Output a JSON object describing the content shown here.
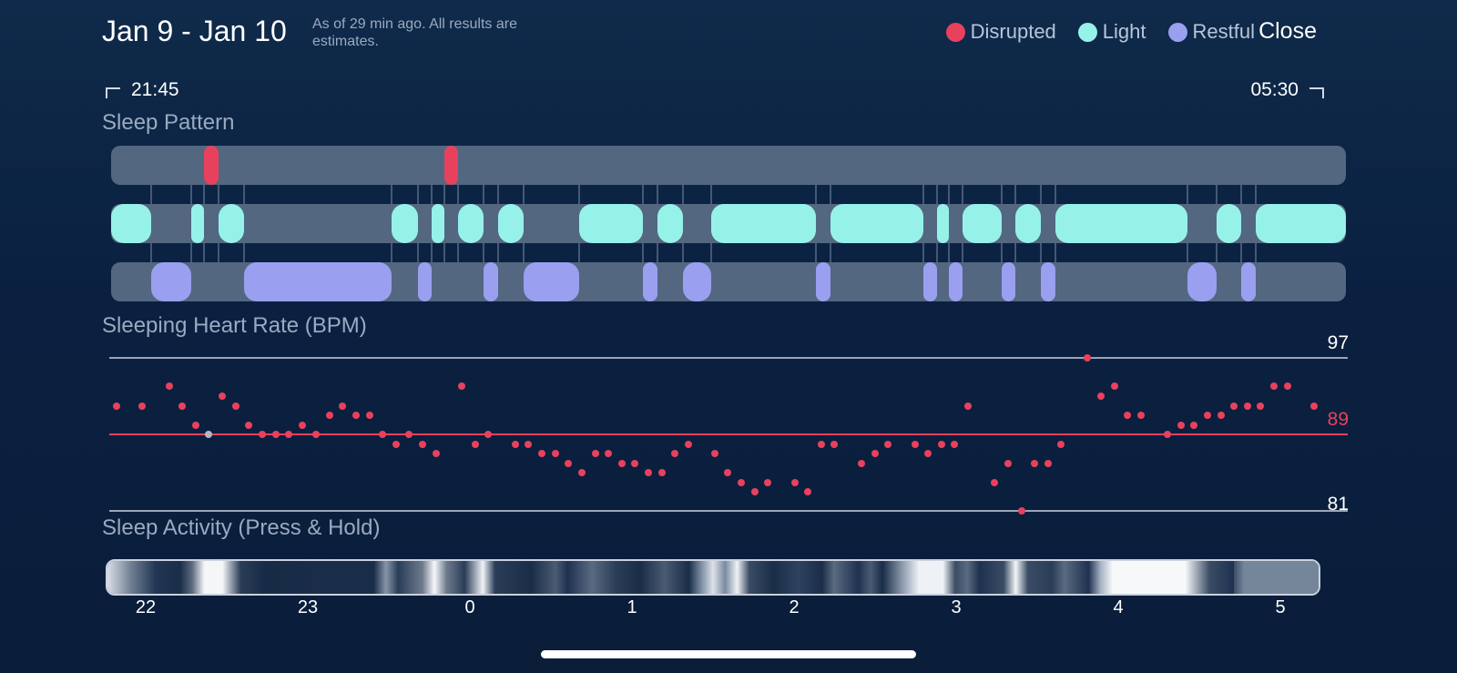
{
  "header": {
    "date_range": "Jan 9 - Jan 10",
    "as_of": "As of 29 min ago. All results are estimates.",
    "close_label": "Close"
  },
  "legend": [
    {
      "label": "Disrupted",
      "color": "#e8415e"
    },
    {
      "label": "Light",
      "color": "#96f2e8"
    },
    {
      "label": "Restful",
      "color": "#9a9ff0"
    }
  ],
  "time_range": {
    "start": "21:45",
    "end": "05:30"
  },
  "sleep_pattern": {
    "title": "Sleep Pattern",
    "track_color": "#536781"
  },
  "heart_rate": {
    "title": "Sleeping Heart Rate (BPM)",
    "max": "97",
    "avg": "89",
    "min": "81",
    "avg_color": "#e8415e"
  },
  "activity": {
    "title": "Sleep Activity (Press & Hold)"
  },
  "x_axis": {
    "ticks": [
      "22",
      "23",
      "0",
      "1",
      "2",
      "3",
      "4",
      "5"
    ]
  }
}
